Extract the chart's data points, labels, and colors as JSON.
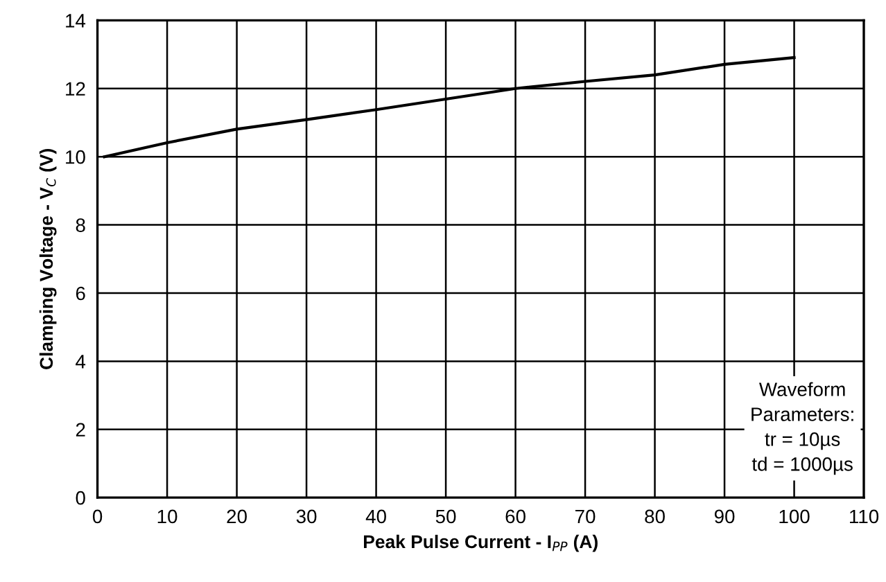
{
  "chart_data": {
    "type": "line",
    "xlabel": "Peak Pulse Current - I$_{PP}$ (A)",
    "ylabel": "Clamping Voltage - V$_{C}$ (V)",
    "x": [
      1,
      10,
      20,
      30,
      40,
      50,
      60,
      70,
      80,
      90,
      100
    ],
    "series": [
      {
        "color": "#000000",
        "values": [
          10.0,
          10.41,
          10.81,
          11.09,
          11.38,
          11.69,
          12.0,
          12.21,
          12.4,
          12.71,
          12.91
        ]
      }
    ],
    "xlim": [
      0,
      110
    ],
    "xticks": [
      0,
      10,
      20,
      30,
      40,
      50,
      60,
      70,
      80,
      90,
      100,
      110
    ],
    "ylim": [
      0,
      14
    ],
    "yticks": [
      0,
      2,
      4,
      6,
      8,
      10,
      12,
      14
    ],
    "grid": true,
    "marker": "none",
    "line_style": "solid",
    "annotations": [
      "Waveform\nParameters:\ntr = 10µs\ntd = 1000µs"
    ]
  }
}
